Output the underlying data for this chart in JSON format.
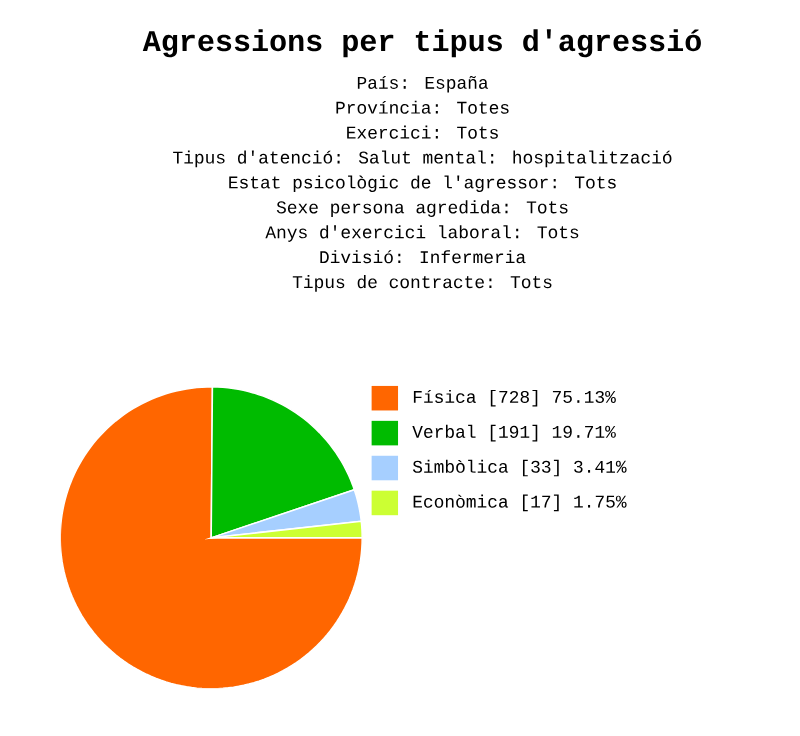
{
  "chart_data": {
    "type": "pie",
    "title": "Agressions per tipus d'agressió",
    "annotations": [
      "País: España",
      "Província: Totes",
      "Exercici: Tots",
      "Tipus d'atenció: Salut mental: hospitalització",
      "Estat psicològic de l'agressor: Tots",
      "Sexe persona agredida: Tots",
      "Anys d'exercici laboral: Tots",
      "Divisió: Infermeria",
      "Tipus de contracte: Tots"
    ],
    "categories": [
      "Física",
      "Verbal",
      "Simbòlica",
      "Econòmica"
    ],
    "values": [
      728,
      191,
      33,
      17
    ],
    "value_labels": [
      "[728] 75.13%",
      "[191] 19.71%",
      "[33] 3.41%",
      "[17] 1.75%"
    ],
    "colors": [
      "#ff6600",
      "#00bb00",
      "#a6cfff",
      "#ccff33"
    ],
    "legend": "right"
  }
}
